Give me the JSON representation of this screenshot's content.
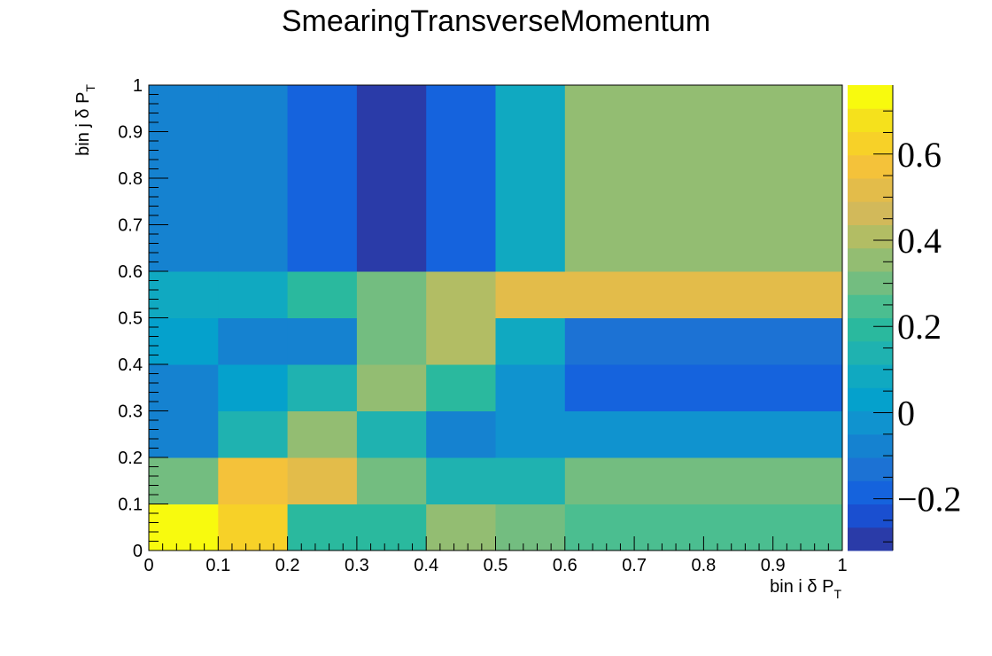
{
  "chart_data": {
    "type": "heatmap",
    "title": "SmearingTransverseMomentum",
    "xlabel": {
      "main": "bin i δ P",
      "sub": "T"
    },
    "ylabel": {
      "main": "bin j δ P",
      "sub": "T"
    },
    "xlim": [
      0,
      1
    ],
    "ylim": [
      0,
      1
    ],
    "x_ticks": [
      "0",
      "0.1",
      "0.2",
      "0.3",
      "0.4",
      "0.5",
      "0.6",
      "0.7",
      "0.8",
      "0.9",
      "1"
    ],
    "y_ticks": [
      "0",
      "0.1",
      "0.2",
      "0.3",
      "0.4",
      "0.5",
      "0.6",
      "0.7",
      "0.8",
      "0.9",
      "1"
    ],
    "x_edges": [
      0.0,
      0.1,
      0.2,
      0.3,
      0.4,
      0.5,
      0.6,
      1.0
    ],
    "y_edges": [
      0.0,
      0.1,
      0.2,
      0.3,
      0.4,
      0.5,
      0.6,
      1.0
    ],
    "z_rows_bottom_to_top": [
      [
        0.76,
        0.62,
        0.18,
        0.18,
        0.34,
        0.28,
        0.22
      ],
      [
        0.3,
        0.56,
        0.5,
        0.28,
        0.14,
        0.14,
        0.28
      ],
      [
        -0.1,
        0.16,
        0.38,
        0.14,
        -0.06,
        -0.04,
        -0.04
      ],
      [
        -0.1,
        0.02,
        0.16,
        0.36,
        0.2,
        -0.04,
        -0.18
      ],
      [
        0.02,
        -0.1,
        -0.1,
        0.28,
        0.42,
        0.06,
        -0.14
      ],
      [
        0.1,
        0.1,
        0.18,
        0.28,
        0.4,
        0.52,
        0.5
      ],
      [
        -0.1,
        -0.1,
        -0.18,
        -0.32,
        -0.18,
        0.1,
        0.34
      ]
    ],
    "zlim": [
      -0.32,
      0.76
    ],
    "colorbar": {
      "ticks": [
        {
          "value": -0.2,
          "label": "−0.2"
        },
        {
          "value": 0.0,
          "label": "0"
        },
        {
          "value": 0.2,
          "label": "0.2"
        },
        {
          "value": 0.4,
          "label": "0.4"
        },
        {
          "value": 0.6,
          "label": "0.6"
        }
      ],
      "colors": [
        "#2a3ba8",
        "#1a4fd0",
        "#1563dd",
        "#1c72d4",
        "#1582d0",
        "#1093cf",
        "#05a1cc",
        "#10a9c1",
        "#1fb2b0",
        "#2ab99e",
        "#4bbe90",
        "#73bd80",
        "#93bd72",
        "#b2bd64",
        "#d2b95a",
        "#e3bc4a",
        "#f4c23a",
        "#f7d128",
        "#f5e11c",
        "#f8fa0e"
      ]
    },
    "grid": false,
    "palette": "ROOT kBird",
    "colors": {
      "background": "#ffffff",
      "axis": "#000000"
    }
  }
}
